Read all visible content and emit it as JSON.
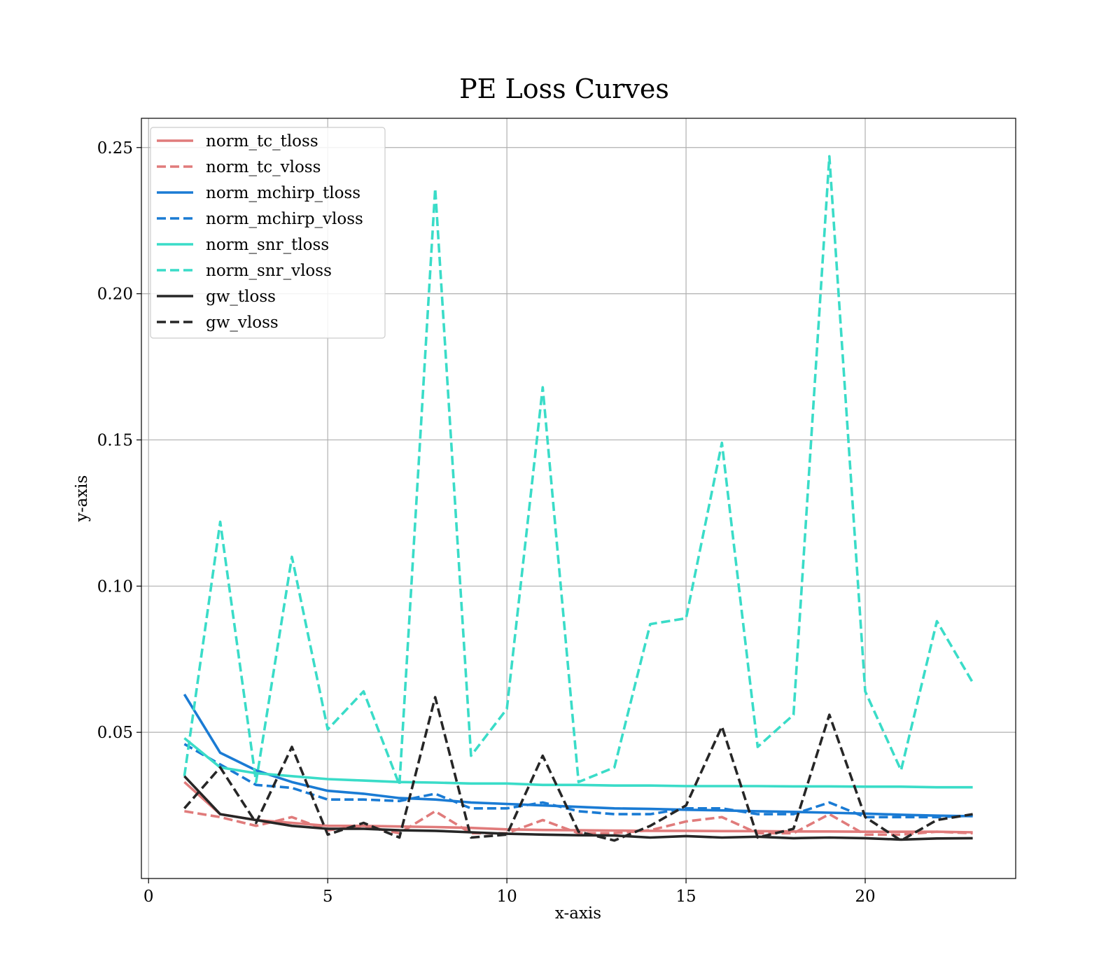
{
  "chart_data": {
    "type": "line",
    "title": "PE Loss Curves",
    "xlabel": "x-axis",
    "ylabel": "y-axis",
    "xlim": [
      -0.2,
      24.2
    ],
    "ylim": [
      0.0,
      0.26
    ],
    "xticks": [
      0,
      5,
      10,
      15,
      20
    ],
    "yticks": [
      0.05,
      0.1,
      0.15,
      0.2,
      0.25
    ],
    "ytick_labels": [
      "0.05",
      "0.10",
      "0.15",
      "0.20",
      "0.25"
    ],
    "grid": true,
    "legend_position": "top-left",
    "x": [
      1,
      2,
      3,
      4,
      5,
      6,
      7,
      8,
      9,
      10,
      11,
      12,
      13,
      14,
      15,
      16,
      17,
      18,
      19,
      20,
      21,
      22,
      23
    ],
    "series": [
      {
        "name": "norm_tc_tloss",
        "color": "#e07b7b",
        "dash": "solid",
        "values": [
          0.033,
          0.022,
          0.02,
          0.019,
          0.018,
          0.018,
          0.0178,
          0.0176,
          0.0173,
          0.0168,
          0.0166,
          0.0165,
          0.0164,
          0.0163,
          0.0163,
          0.0162,
          0.0162,
          0.0161,
          0.0161,
          0.016,
          0.016,
          0.016,
          0.0158
        ]
      },
      {
        "name": "norm_tc_vloss",
        "color": "#e07b7b",
        "dash": "dashed",
        "values": [
          0.023,
          0.021,
          0.018,
          0.021,
          0.0165,
          0.018,
          0.0155,
          0.023,
          0.0155,
          0.0155,
          0.02,
          0.0155,
          0.0155,
          0.0165,
          0.0195,
          0.021,
          0.0155,
          0.0155,
          0.022,
          0.015,
          0.015,
          0.016,
          0.0155
        ]
      },
      {
        "name": "norm_mchirp_tloss",
        "color": "#1a7bd4",
        "dash": "solid",
        "values": [
          0.063,
          0.043,
          0.037,
          0.033,
          0.03,
          0.029,
          0.0275,
          0.027,
          0.026,
          0.0255,
          0.025,
          0.0245,
          0.024,
          0.0238,
          0.0235,
          0.0233,
          0.023,
          0.0228,
          0.0225,
          0.0222,
          0.0218,
          0.0215,
          0.0213
        ]
      },
      {
        "name": "norm_mchirp_vloss",
        "color": "#1a7bd4",
        "dash": "dashed",
        "values": [
          0.046,
          0.039,
          0.032,
          0.031,
          0.027,
          0.027,
          0.0265,
          0.029,
          0.024,
          0.024,
          0.026,
          0.023,
          0.022,
          0.022,
          0.024,
          0.024,
          0.022,
          0.022,
          0.026,
          0.021,
          0.021,
          0.021,
          0.0215
        ]
      },
      {
        "name": "norm_snr_tloss",
        "color": "#3adcc8",
        "dash": "solid",
        "values": [
          0.048,
          0.038,
          0.036,
          0.035,
          0.034,
          0.0335,
          0.033,
          0.0328,
          0.0325,
          0.0325,
          0.032,
          0.032,
          0.0318,
          0.0318,
          0.0316,
          0.0316,
          0.0316,
          0.0315,
          0.0315,
          0.0314,
          0.0314,
          0.0312,
          0.0312
        ]
      },
      {
        "name": "norm_snr_vloss",
        "color": "#3adcc8",
        "dash": "dashed",
        "values": [
          0.035,
          0.122,
          0.033,
          0.11,
          0.051,
          0.064,
          0.032,
          0.236,
          0.042,
          0.058,
          0.168,
          0.033,
          0.038,
          0.087,
          0.089,
          0.149,
          0.045,
          0.056,
          0.247,
          0.064,
          0.037,
          0.088,
          0.067
        ]
      },
      {
        "name": "gw_tloss",
        "color": "#262626",
        "dash": "solid",
        "values": [
          0.035,
          0.022,
          0.02,
          0.018,
          0.017,
          0.017,
          0.0165,
          0.0163,
          0.0158,
          0.0153,
          0.015,
          0.0148,
          0.0147,
          0.014,
          0.0145,
          0.014,
          0.0143,
          0.0138,
          0.014,
          0.0138,
          0.0133,
          0.0137,
          0.0138
        ]
      },
      {
        "name": "gw_vloss",
        "color": "#262626",
        "dash": "dashed",
        "values": [
          0.024,
          0.038,
          0.019,
          0.045,
          0.015,
          0.019,
          0.014,
          0.062,
          0.014,
          0.015,
          0.042,
          0.016,
          0.013,
          0.018,
          0.025,
          0.052,
          0.014,
          0.017,
          0.056,
          0.021,
          0.013,
          0.02,
          0.022
        ]
      }
    ]
  }
}
